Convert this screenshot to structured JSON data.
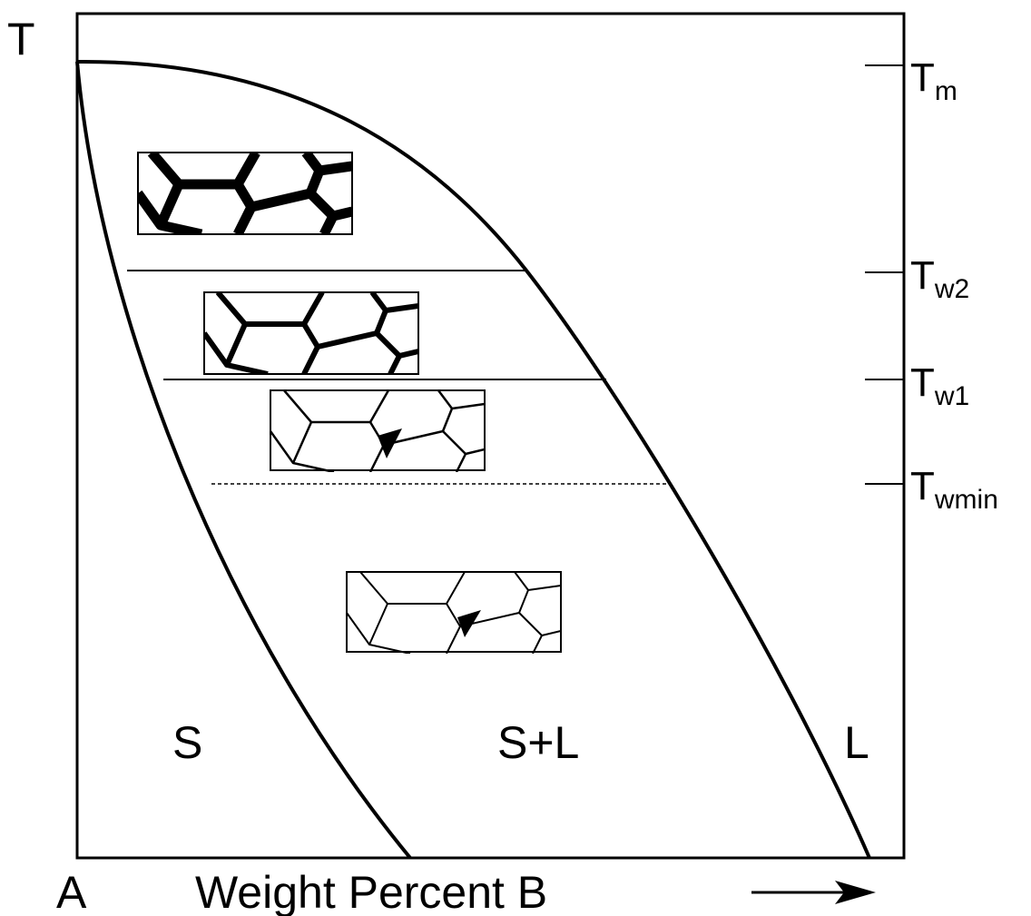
{
  "axis": {
    "y_label": "T",
    "x_origin": "A",
    "x_label": "Weight Percent B"
  },
  "temperatures": [
    {
      "symbol": "T",
      "subscript": "m"
    },
    {
      "symbol": "T",
      "subscript": "w2"
    },
    {
      "symbol": "T",
      "subscript": "w1"
    },
    {
      "symbol": "T",
      "subscript": "wmin"
    }
  ],
  "regions": [
    "S",
    "S+L",
    "L"
  ]
}
